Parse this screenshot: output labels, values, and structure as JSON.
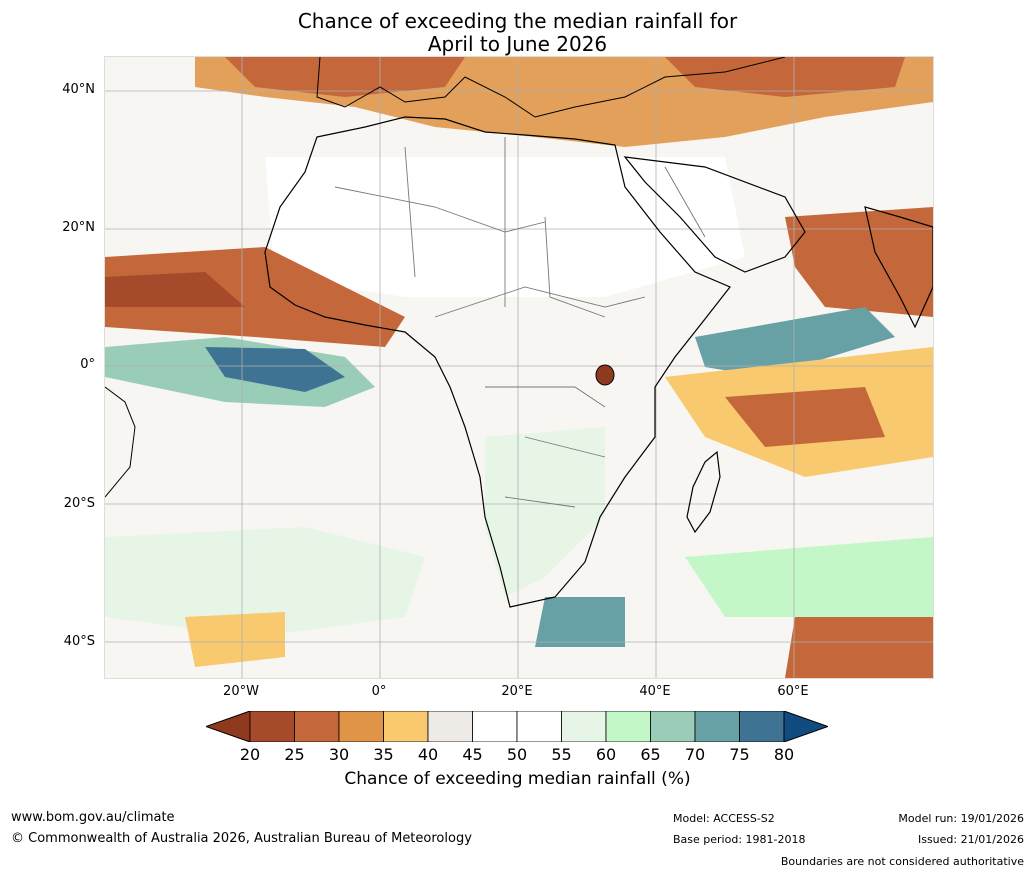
{
  "title_line1": "Chance of exceeding the median rainfall for",
  "title_line2": "April to June 2026",
  "lat_labels": [
    "40°N",
    "20°N",
    "0°",
    "20°S",
    "40°S"
  ],
  "lon_labels": [
    "20°W",
    "0°",
    "20°E",
    "40°E",
    "60°E"
  ],
  "colorbar": {
    "ticks": [
      "20",
      "25",
      "30",
      "35",
      "40",
      "45",
      "50",
      "55",
      "60",
      "65",
      "70",
      "75",
      "80"
    ],
    "colors": [
      "#a54a2a",
      "#c4673a",
      "#e09448",
      "#f8c96e",
      "#eeeae5",
      "#ffffff",
      "#ffffff",
      "#e6f5e6",
      "#c3f7c8",
      "#99cdb8",
      "#67a0a5",
      "#3f7394"
    ],
    "low_color": "#8f3a1e",
    "high_color": "#104c7e",
    "label": "Chance of exceeding median rainfall (%)"
  },
  "footer": {
    "website": "www.bom.gov.au/climate",
    "copyright": "© Commonwealth of Australia 2026, Australian Bureau of Meteorology",
    "model": "Model: ACCESS-S2",
    "base_period": "Base period: 1981-2018",
    "model_run": "Model run: 19/01/2026",
    "issued": "Issued: 21/01/2026",
    "disclaimer": "Boundaries are not considered authoritative"
  }
}
